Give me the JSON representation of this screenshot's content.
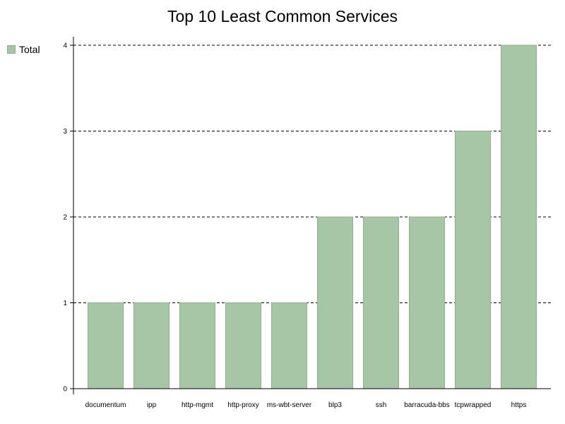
{
  "chart_data": {
    "type": "bar",
    "title": "Top 10 Least Common Services",
    "categories": [
      "documentum",
      "ipp",
      "http-mgmt",
      "http-proxy",
      "ms-wbt-server",
      "blp3",
      "ssh",
      "barracuda-bbs",
      "tcpwrapped",
      "https"
    ],
    "series": [
      {
        "name": "Total",
        "values": [
          1,
          1,
          1,
          1,
          1,
          2,
          2,
          2,
          3,
          4
        ]
      }
    ],
    "y_ticks": [
      "0",
      "1",
      "2",
      "3",
      "4"
    ],
    "ylim": [
      0,
      4
    ],
    "grid": true,
    "legend_position": "top-left"
  },
  "colors": {
    "bar_fill": "#a6c6a6",
    "bar_stroke": "#8ab58a"
  }
}
